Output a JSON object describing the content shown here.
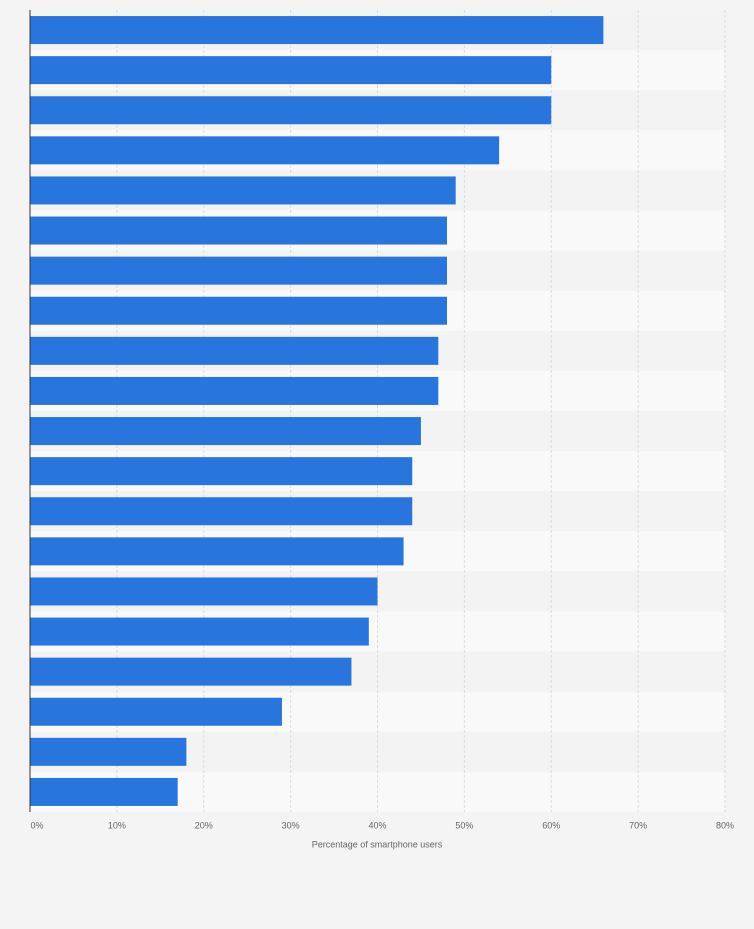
{
  "chart_data": {
    "type": "bar",
    "orientation": "horizontal",
    "x_label": "Percentage of smartphone users",
    "categories": [
      null,
      null,
      null,
      null,
      null,
      null,
      null,
      null,
      null,
      null,
      null,
      null,
      null,
      null,
      null,
      null,
      null,
      null,
      null,
      null
    ],
    "values": [
      66,
      60,
      60,
      54,
      49,
      48,
      48,
      48,
      47,
      47,
      45,
      44,
      44,
      43,
      40,
      39,
      37,
      29,
      18,
      17
    ],
    "color": "#2876dd",
    "xlim": [
      0,
      80
    ],
    "xticks": [
      {
        "value": 0,
        "label": "0%"
      },
      {
        "value": 10,
        "label": "10%"
      },
      {
        "value": 20,
        "label": "20%"
      },
      {
        "value": 30,
        "label": "30%"
      },
      {
        "value": 40,
        "label": "40%"
      },
      {
        "value": 50,
        "label": "50%"
      },
      {
        "value": 60,
        "label": "60%"
      },
      {
        "value": 70,
        "label": "70%"
      },
      {
        "value": 80,
        "label": "80%"
      }
    ],
    "grid": true
  }
}
